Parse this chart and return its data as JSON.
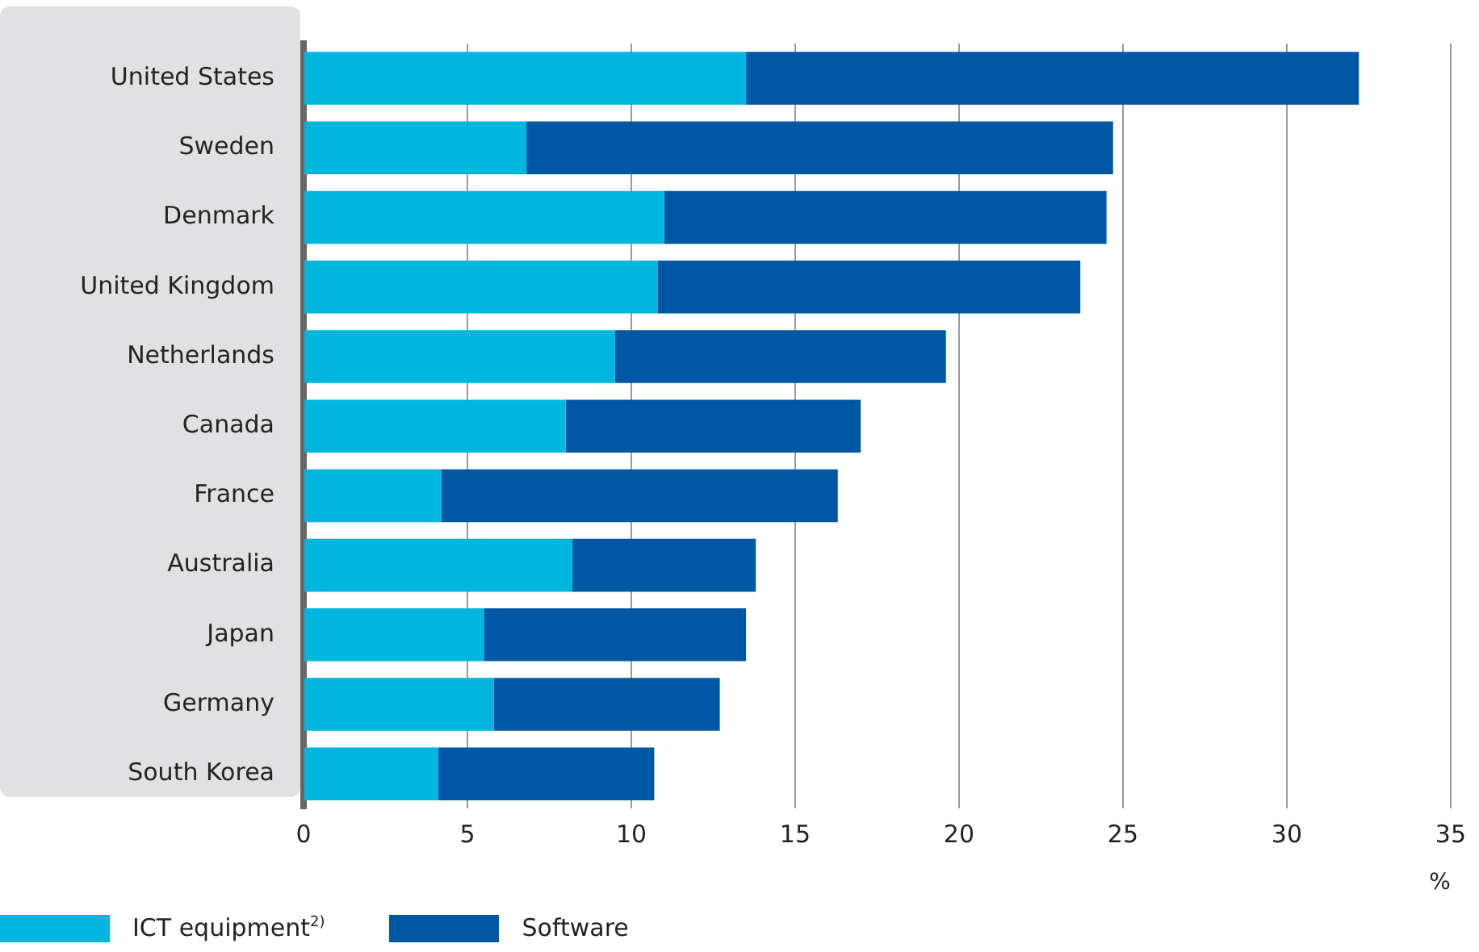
{
  "chart_data": {
    "type": "bar",
    "orientation": "horizontal",
    "stacked": true,
    "categories": [
      "United States",
      "Sweden",
      "Denmark",
      "United Kingdom",
      "Netherlands",
      "Canada",
      "France",
      "Australia",
      "Japan",
      "Germany",
      "South Korea"
    ],
    "series": [
      {
        "name": "ICT equipment$^{2)}$",
        "color": "#00b5de",
        "values": [
          13.5,
          6.8,
          11.0,
          10.8,
          9.5,
          8.0,
          4.2,
          8.2,
          5.5,
          5.8,
          4.1
        ]
      },
      {
        "name": "Software",
        "color": "#0058a5",
        "values": [
          18.7,
          17.9,
          13.5,
          12.9,
          10.1,
          9.0,
          12.1,
          5.6,
          8.0,
          6.9,
          6.6
        ]
      }
    ],
    "xlim": [
      0,
      35
    ],
    "xticks": [
      0,
      5,
      10,
      15,
      20,
      25,
      30,
      35
    ],
    "xlabel": "%",
    "grid": "x",
    "legend": "bottom"
  }
}
